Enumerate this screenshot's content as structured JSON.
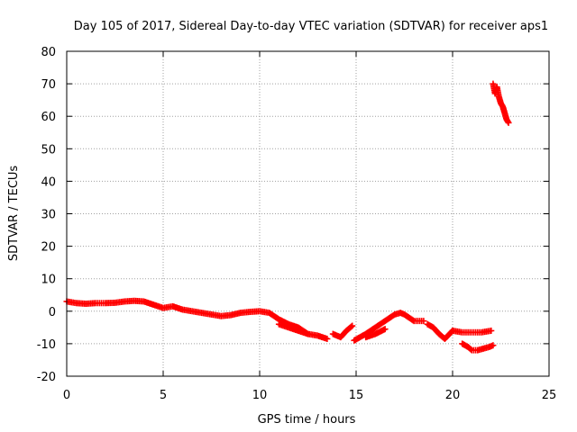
{
  "chart_data": {
    "type": "scatter",
    "title": "Day 105 of 2017, Sidereal Day-to-day VTEC variation (SDTVAR) for receiver aps1",
    "xlabel": "GPS time / hours",
    "ylabel": "SDTVAR / TECUs",
    "xlim": [
      0,
      25
    ],
    "ylim": [
      -20,
      80
    ],
    "xticks": [
      0,
      5,
      10,
      15,
      20,
      25
    ],
    "yticks": [
      -20,
      -10,
      0,
      10,
      20,
      30,
      40,
      50,
      60,
      70,
      80
    ],
    "xtick_labels": [
      "0",
      "5",
      "10",
      "15",
      "20",
      "25"
    ],
    "ytick_labels": [
      "-20",
      "-10",
      "0",
      "10",
      "20",
      "30",
      "40",
      "50",
      "60",
      "70",
      "80"
    ],
    "grid": true,
    "marker": "+",
    "color": "#ff0000",
    "series": [
      {
        "name": "aps1",
        "segments": [
          {
            "x": [
              0,
              0.5,
              1,
              1.5,
              2,
              2.5,
              3,
              3.5,
              4,
              4.5,
              5,
              5.5,
              6,
              6.5,
              7,
              7.5,
              8,
              8.5,
              9,
              9.5,
              10,
              10.5,
              11,
              11.5,
              12,
              12.5,
              13,
              13.5
            ],
            "y": [
              3,
              2.5,
              2.3,
              2.5,
              2.5,
              2.6,
              3,
              3.2,
              3,
              2,
              1,
              1.5,
              0.5,
              0,
              -0.5,
              -1,
              -1.5,
              -1.2,
              -0.5,
              -0.2,
              0,
              -0.5,
              -2.5,
              -4,
              -5,
              -7,
              -7.5,
              -8.5
            ]
          },
          {
            "x": [
              11,
              11.5,
              12,
              12.5
            ],
            "y": [
              -4,
              -5,
              -6,
              -7
            ]
          },
          {
            "x": [
              13.8,
              14,
              14.2,
              14.5,
              14.8
            ],
            "y": [
              -7,
              -7.5,
              -8,
              -6,
              -4.5
            ]
          },
          {
            "x": [
              14.9,
              15.2,
              15.5,
              16,
              16.5,
              17,
              17.3,
              17.5,
              18,
              18.5
            ],
            "y": [
              -9,
              -8,
              -7,
              -5,
              -3,
              -1,
              -0.5,
              -1,
              -3,
              -3
            ]
          },
          {
            "x": [
              15.5,
              16,
              16.5
            ],
            "y": [
              -8,
              -7,
              -5.5
            ]
          },
          {
            "x": [
              18.7,
              19,
              19.3,
              19.6,
              20
            ],
            "y": [
              -4,
              -5,
              -7,
              -8.5,
              -6
            ]
          },
          {
            "x": [
              20,
              20.5,
              21,
              21.5,
              22
            ],
            "y": [
              -6,
              -6.5,
              -6.5,
              -6.5,
              -6
            ]
          },
          {
            "x": [
              20.5,
              20.8,
              21,
              21.3,
              21.6,
              21.9,
              22.1
            ],
            "y": [
              -10,
              -11,
              -12,
              -12,
              -11.5,
              -11,
              -10.5
            ]
          },
          {
            "x": [
              22.1,
              22.2,
              22.3,
              22.4,
              22.5,
              22.6,
              22.7,
              22.8,
              22.9
            ],
            "y": [
              70,
              67,
              69,
              66,
              64,
              63,
              61,
              59,
              58
            ]
          }
        ]
      }
    ]
  }
}
